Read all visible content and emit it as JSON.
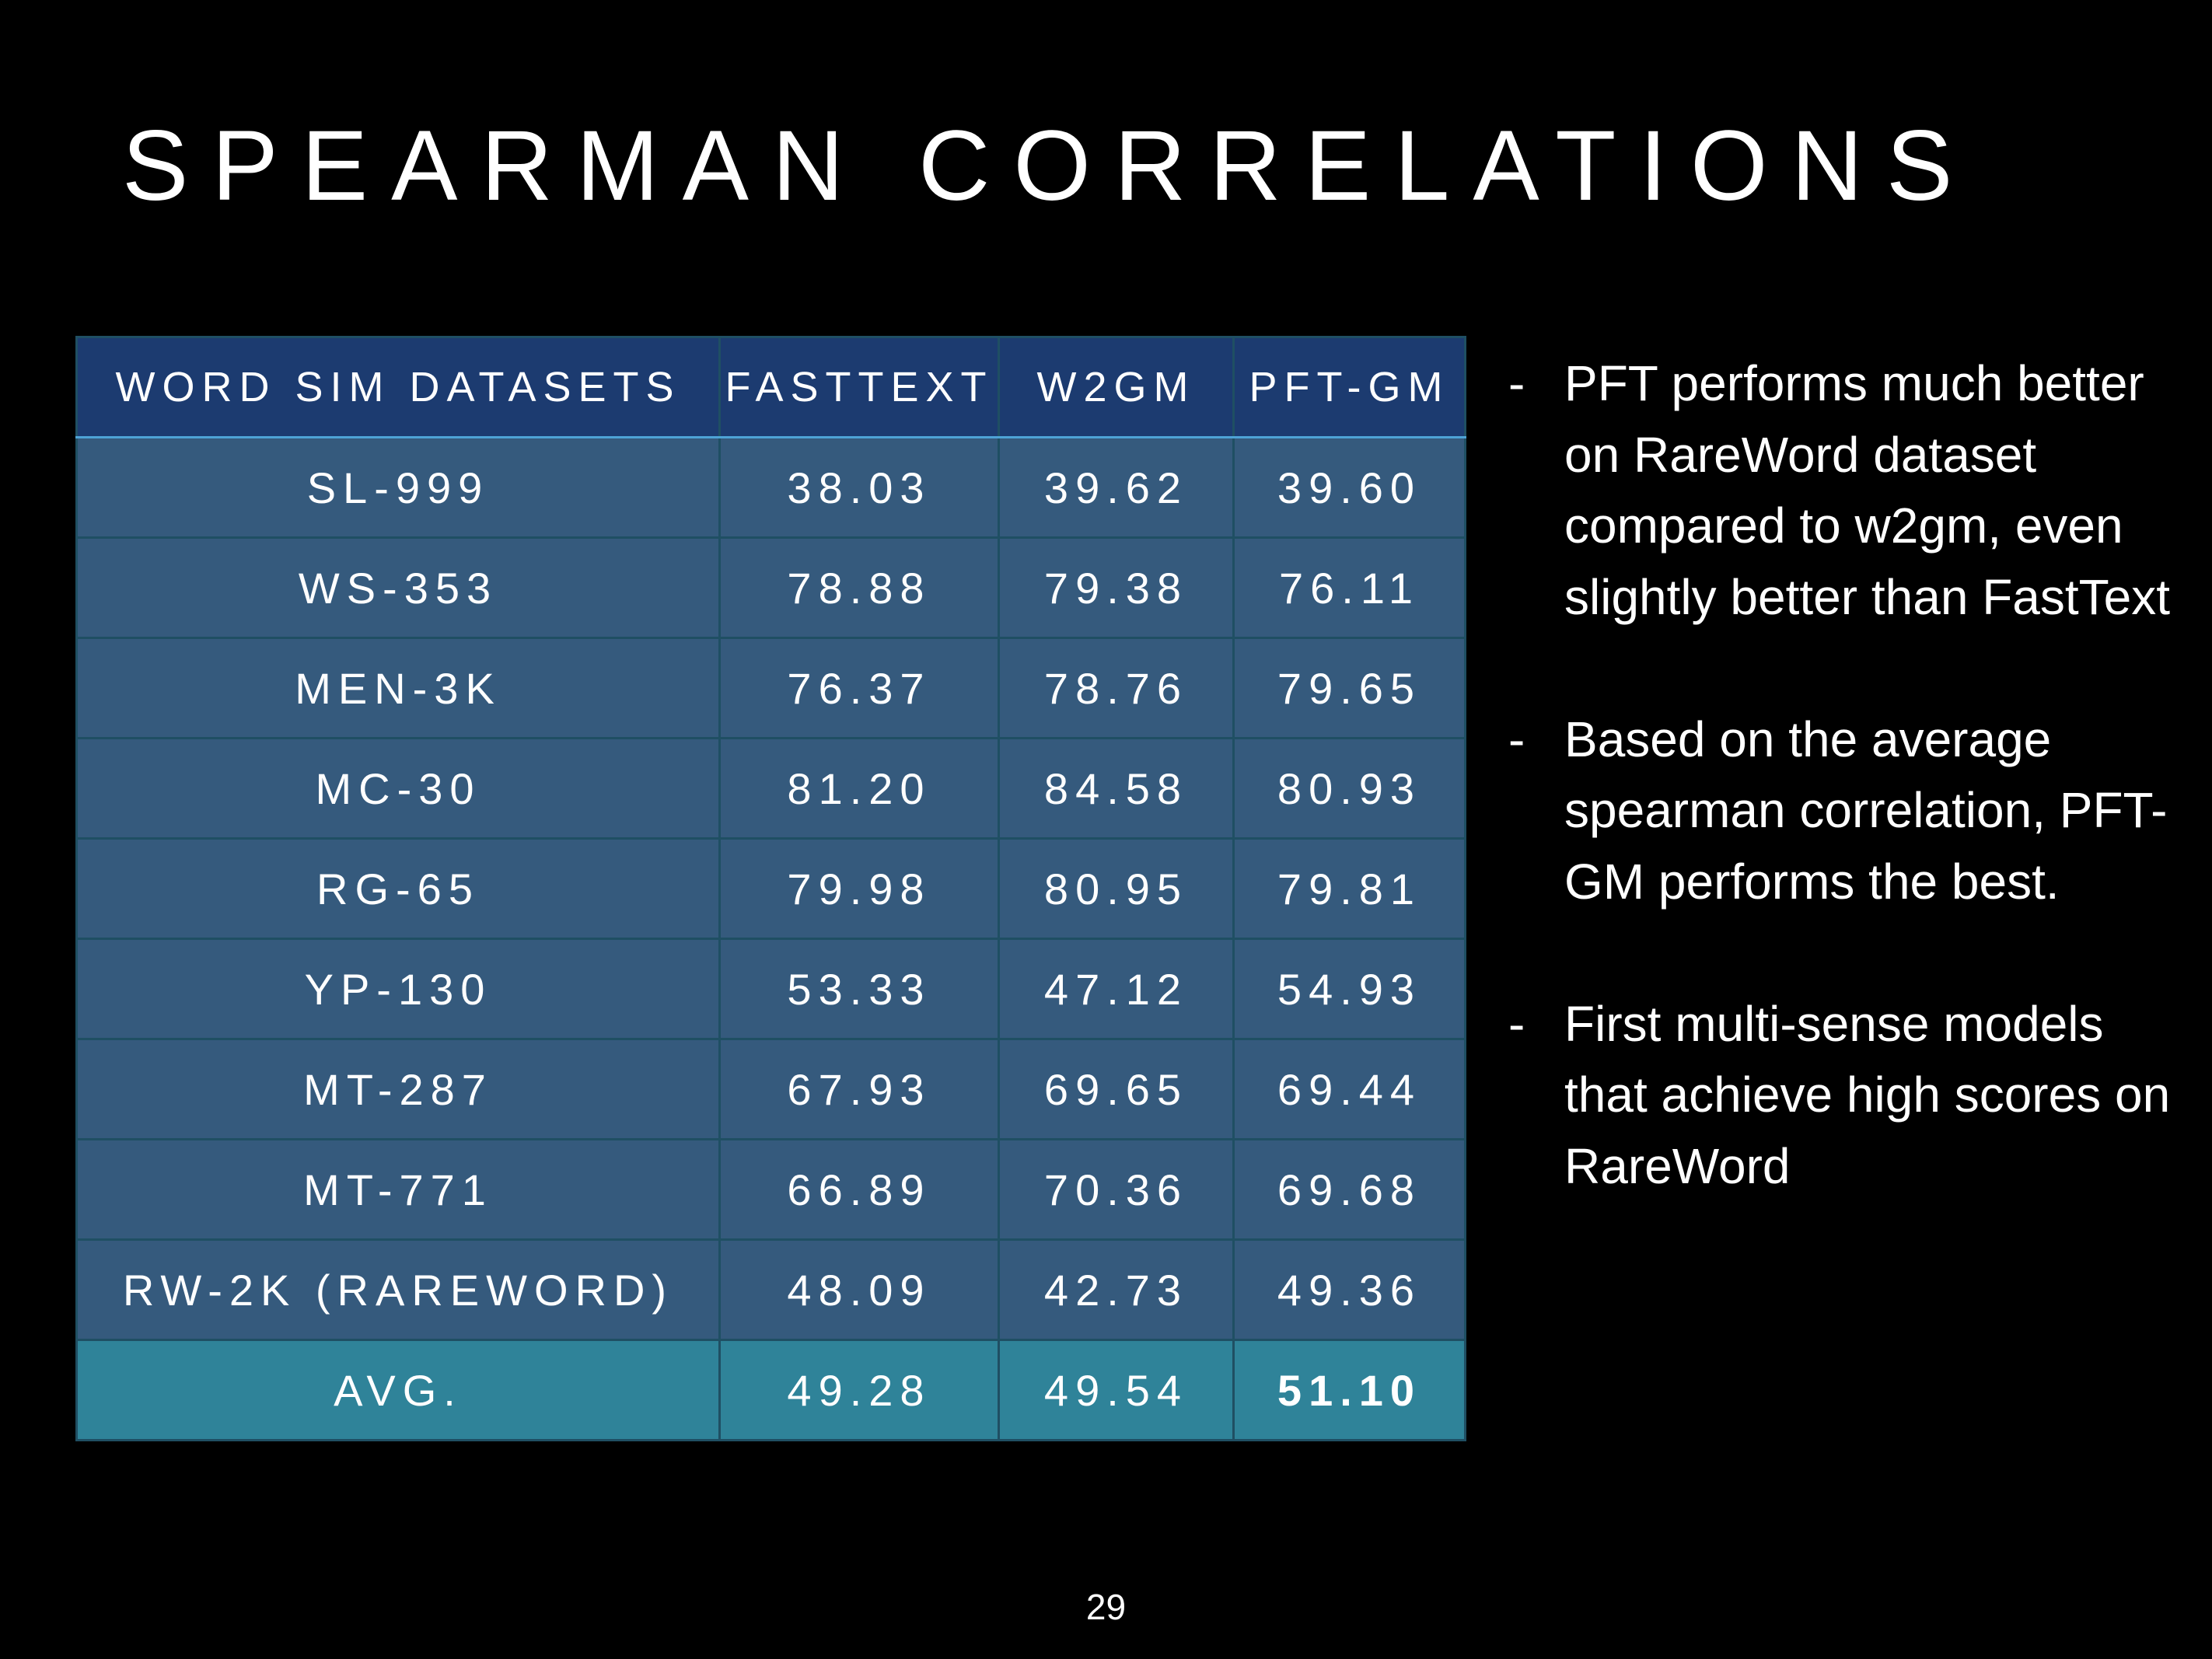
{
  "slide": {
    "title": "SPEARMAN CORRELATIONS",
    "page_number": "29"
  },
  "table": {
    "headers": [
      "WORD SIM DATASETS",
      "FASTTEXT",
      "W2GM",
      "PFT-GM"
    ],
    "rows": [
      [
        "SL-999",
        "38.03",
        "39.62",
        "39.60"
      ],
      [
        "WS-353",
        "78.88",
        "79.38",
        "76.11"
      ],
      [
        "MEN-3K",
        "76.37",
        "78.76",
        "79.65"
      ],
      [
        "MC-30",
        "81.20",
        "84.58",
        "80.93"
      ],
      [
        "RG-65",
        "79.98",
        "80.95",
        "79.81"
      ],
      [
        "YP-130",
        "53.33",
        "47.12",
        "54.93"
      ],
      [
        "MT-287",
        "67.93",
        "69.65",
        "69.44"
      ],
      [
        "MT-771",
        "66.89",
        "70.36",
        "69.68"
      ],
      [
        "RW-2K (RAREWORD)",
        "48.09",
        "42.73",
        "49.36"
      ]
    ],
    "avg_row": [
      "AVG.",
      "49.28",
      "49.54",
      "51.10"
    ]
  },
  "bullets": [
    {
      "dash": "-",
      "text": "PFT performs much better on RareWord dataset compared to w2gm, even slightly better than FastText"
    },
    {
      "dash": "-",
      "text": "Based on the average spearman correlation, PFT-GM performs the best."
    },
    {
      "dash": "-",
      "text": "First multi-sense models that achieve high scores on RareWord"
    }
  ],
  "colors": {
    "background": "#000000",
    "header_fill": "#1c3b70",
    "row_fill": "#355a7d",
    "avg_fill": "#2f8399",
    "text": "#ffffff"
  }
}
